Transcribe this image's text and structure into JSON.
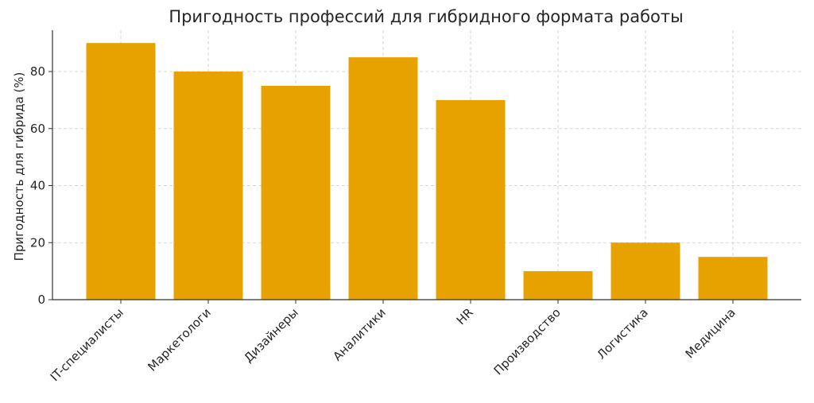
{
  "chart_data": {
    "type": "bar",
    "title": "Пригодность профессий для гибридного формата работы",
    "xlabel": "",
    "ylabel": "Пригодность для гибрида (%)",
    "categories": [
      "IT-специалисты",
      "Маркетологи",
      "Дизайнеры",
      "Аналитики",
      "HR",
      "Производство",
      "Логистика",
      "Медицина"
    ],
    "values": [
      90,
      80,
      75,
      85,
      70,
      10,
      20,
      15
    ],
    "ylim": [
      0,
      94.5
    ],
    "yticks": [
      0,
      20,
      40,
      60,
      80
    ],
    "grid": true,
    "bar_color": "#E8A200"
  }
}
